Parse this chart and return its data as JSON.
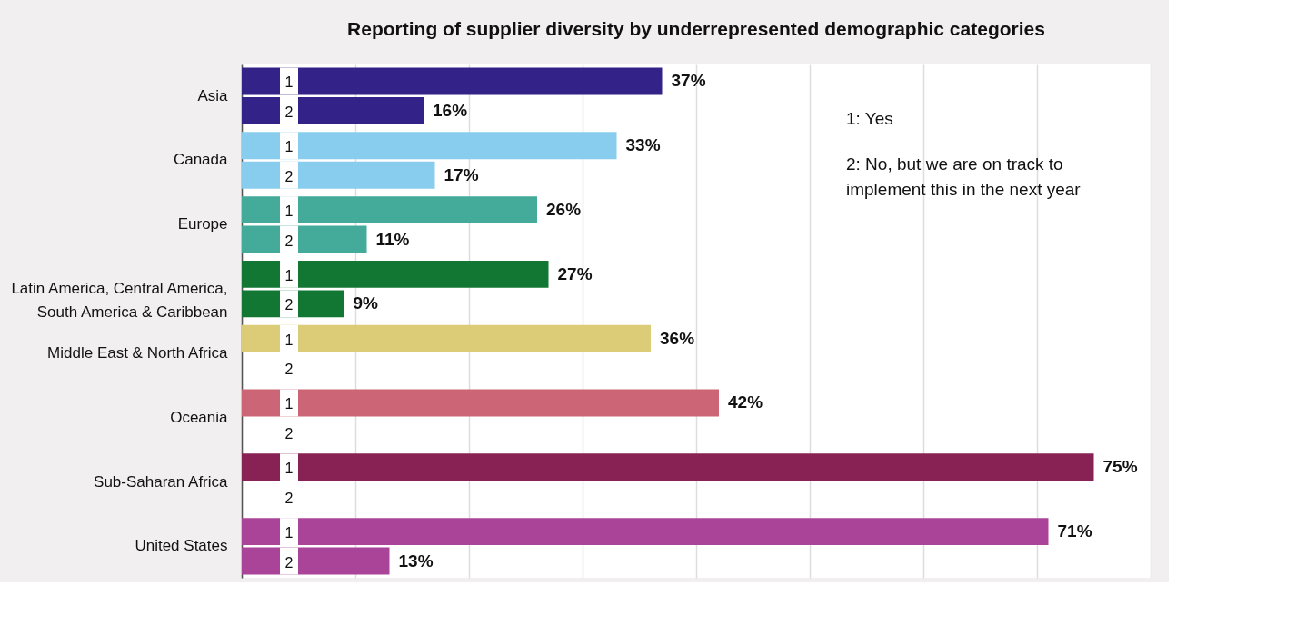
{
  "chart_data": {
    "type": "bar",
    "orientation": "horizontal",
    "title": "Reporting of supplier diversity by underrepresented demographic categories",
    "categories": [
      "Asia",
      "Canada",
      "Europe",
      "Latin America, Central America, South America & Caribbean",
      "Middle East & North Africa",
      "Oceania",
      "Sub-Saharan Africa",
      "United States"
    ],
    "series": [
      {
        "name": "1",
        "colors": [
          "#332288",
          "#88ccee",
          "#44aa99",
          "#117733",
          "#ddcc77",
          "#cc6677",
          "#882255",
          "#aa4499"
        ],
        "values": [
          37,
          33,
          26,
          27,
          36,
          42,
          75,
          71
        ],
        "value_labels": [
          "37%",
          "33%",
          "26%",
          "27%",
          "36%",
          "42%",
          "75%",
          "71%"
        ]
      },
      {
        "name": "2",
        "colors": [
          "#332288",
          "#88ccee",
          "#44aa99",
          "#117733",
          "#ddcc77",
          "#cc6677",
          "#882255",
          "#aa4499"
        ],
        "values": [
          16,
          17,
          11,
          9,
          null,
          null,
          null,
          13
        ],
        "value_labels": [
          "16%",
          "17%",
          "11%",
          "9%",
          null,
          null,
          null,
          "13%"
        ]
      }
    ],
    "xlim": [
      0,
      80
    ],
    "xticks": [
      {
        "value": 0,
        "label": null
      },
      {
        "value": 10,
        "label": null
      },
      {
        "value": 20,
        "label": null
      },
      {
        "value": 30,
        "label": null
      },
      {
        "value": 40,
        "label": null
      },
      {
        "value": 50,
        "label": null
      },
      {
        "value": 60,
        "label": null
      },
      {
        "value": 70,
        "label": null
      },
      {
        "value": 80,
        "label": null
      }
    ],
    "grid": "x",
    "tick_labels": "y",
    "annotations": [
      "1: Yes",
      "2: No, but we are on track to implement this in the next year"
    ]
  }
}
